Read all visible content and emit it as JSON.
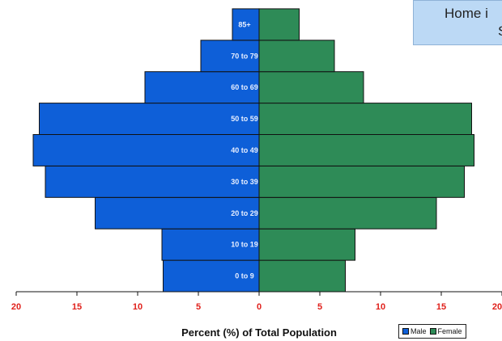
{
  "callout": {
    "line1": "Home i",
    "line2": "S"
  },
  "chart_data": {
    "type": "bar",
    "orientation": "horizontal-pyramid",
    "categories": [
      "0 to 9",
      "10 to 19",
      "20 to 29",
      "30 to 39",
      "40 to 49",
      "50 to 59",
      "60 to 69",
      "70 to 79",
      "85+"
    ],
    "series": [
      {
        "name": "Male",
        "color": "#0e5fd8",
        "values": [
          7.9,
          8.0,
          13.5,
          17.6,
          18.6,
          18.1,
          9.4,
          4.8,
          2.2
        ]
      },
      {
        "name": "Female",
        "color": "#2e8b57",
        "values": [
          7.1,
          7.9,
          14.6,
          16.9,
          17.7,
          17.5,
          8.6,
          6.2,
          3.3
        ]
      }
    ],
    "xlabel": "Percent (%) of Total Population",
    "xlim": [
      -20,
      20
    ],
    "x_ticks": [
      "20",
      "15",
      "10",
      "5",
      "0",
      "5",
      "10",
      "15",
      "20"
    ],
    "legend": {
      "placement": "bottom-right",
      "entries": [
        "Male",
        "Female"
      ]
    },
    "grid": false
  }
}
